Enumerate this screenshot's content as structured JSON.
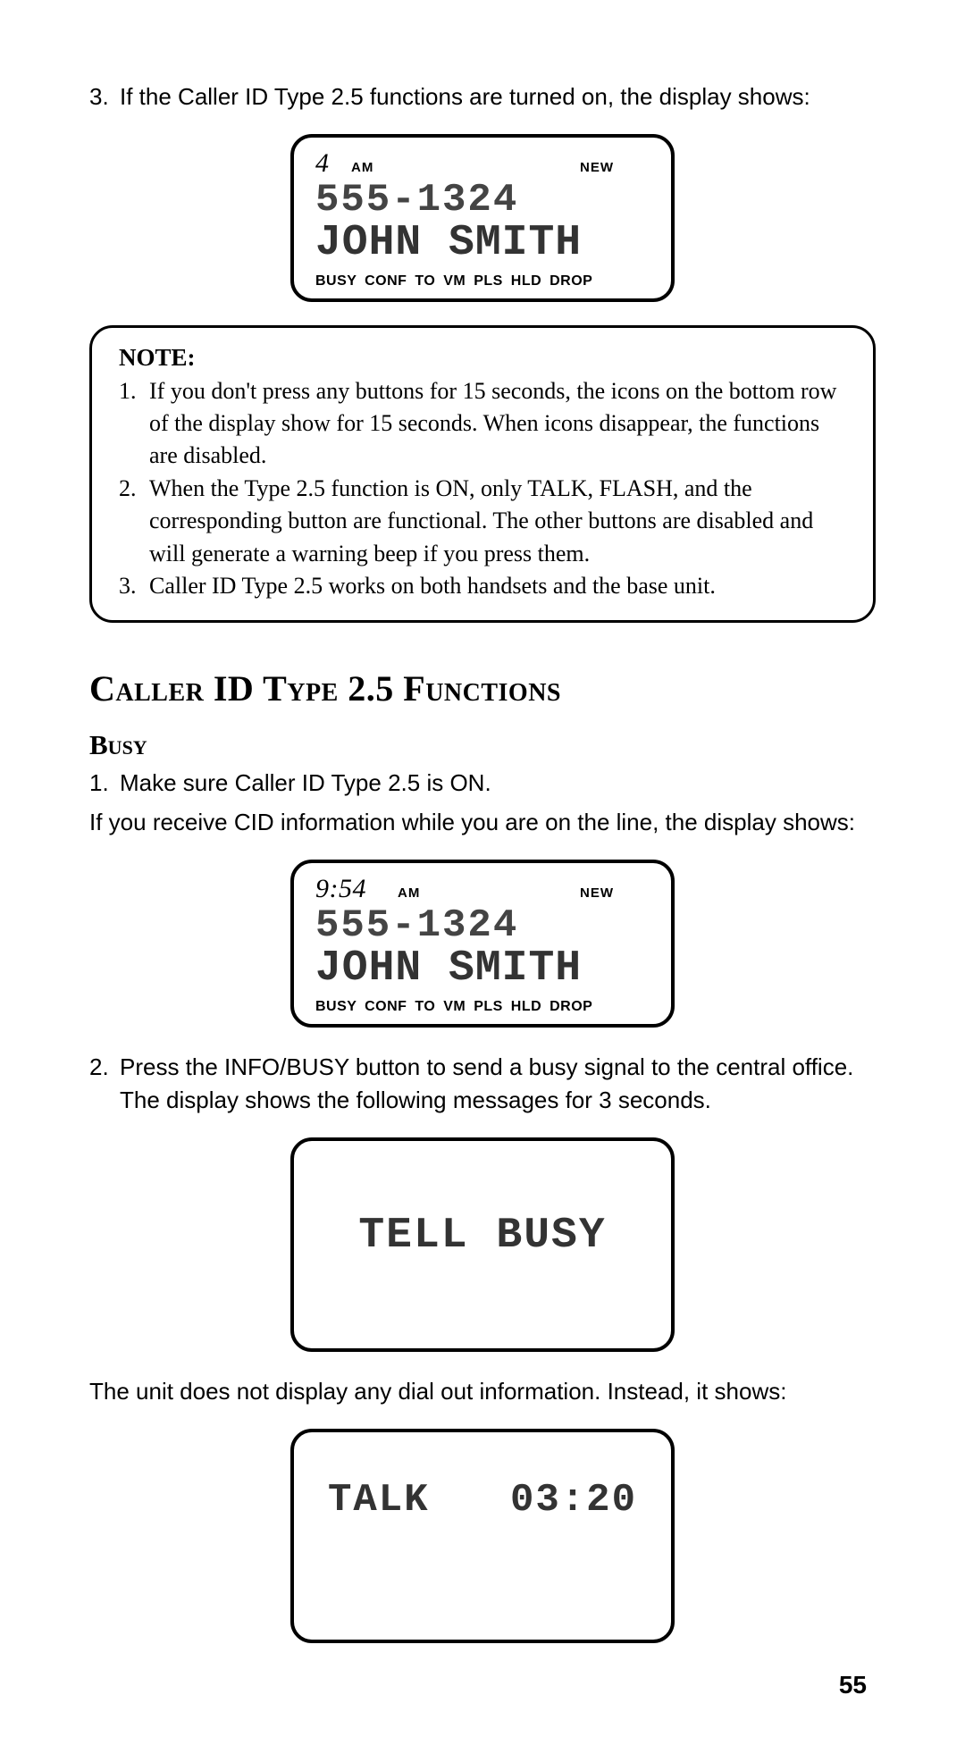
{
  "intro": {
    "num": "3.",
    "text": "If the Caller ID Type 2.5 functions are turned on, the display shows:"
  },
  "lcd1": {
    "top_left": "4",
    "ampm": "AM",
    "new": "NEW",
    "phone": "555-1324",
    "name": "JOHN SMITH",
    "bottom": "BUSY  CONF  TO VM  PLS HLD   DROP"
  },
  "note": {
    "title": "NOTE:",
    "items": [
      {
        "num": "1.",
        "text": "If you don't press any buttons for 15 seconds, the icons on the bottom row of the display show for 15 seconds. When icons disappear, the functions are disabled."
      },
      {
        "num": "2.",
        "text": "When the Type 2.5 function is ON, only TALK, FLASH, and the corresponding button are functional. The other buttons are disabled and will generate a warning beep if you press them."
      },
      {
        "num": "3.",
        "text": "Caller ID Type 2.5 works on both handsets and the base unit."
      }
    ]
  },
  "h1": "Caller ID Type 2.5 Functions",
  "busy": {
    "title": "Busy",
    "step1_num": "1.",
    "step1_text": "Make sure Caller ID Type 2.5 is ON.",
    "after1": "If you receive CID information while you are on the line, the display shows:",
    "step2_num": "2.",
    "step2_text": "Press the INFO/BUSY button to send a busy signal to the central office. The display shows the following messages for 3 seconds.",
    "after2": "The unit does not display any dial out information. Instead, it shows:"
  },
  "lcd2": {
    "top_left": "9:54",
    "ampm": "AM",
    "new": "NEW",
    "phone": "555-1324",
    "name": "JOHN SMITH",
    "bottom": "BUSY  CONF  TO VM  PLS HLD   DROP"
  },
  "lcd3": {
    "center": "TELL BUSY"
  },
  "lcd4": {
    "left": "TALK",
    "right": "03:20"
  },
  "page_number": "55"
}
